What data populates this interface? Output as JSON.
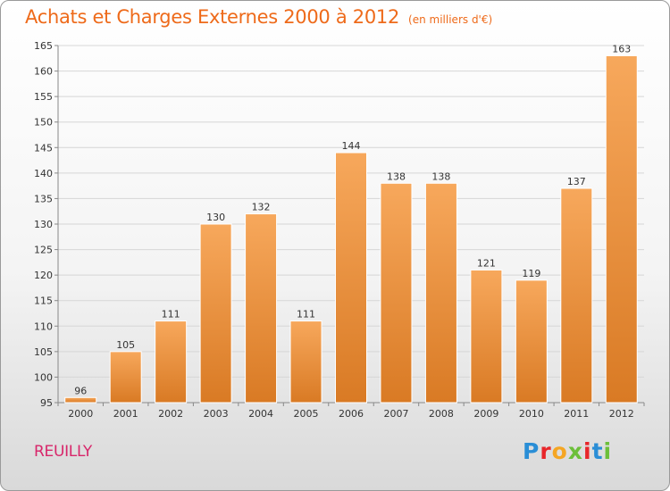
{
  "header": {
    "title": "Achats et Charges Externes 2000 à 2012",
    "subtitle": "(en milliers d'€)"
  },
  "footer": {
    "place": "REUILLY",
    "logo": "Proxiti"
  },
  "colors": {
    "title": "#ee6a1a",
    "place": "#d8266a",
    "bar_light": "#f7a85c",
    "bar_dark": "#d97a24",
    "logo_letters": [
      "#2a8ed6",
      "#e8262a",
      "#f5a623",
      "#6cbf3a",
      "#e8262a",
      "#2a8ed6",
      "#6cbf3a"
    ]
  },
  "chart_data": {
    "type": "bar",
    "title": "Achats et Charges Externes 2000 à 2012",
    "subtitle": "(en milliers d'€)",
    "categories": [
      "2000",
      "2001",
      "2002",
      "2003",
      "2004",
      "2005",
      "2006",
      "2007",
      "2008",
      "2009",
      "2010",
      "2011",
      "2012"
    ],
    "values": [
      96,
      105,
      111,
      130,
      132,
      111,
      144,
      138,
      138,
      121,
      119,
      137,
      163
    ],
    "ylim": [
      95,
      165
    ],
    "yticks": [
      95,
      100,
      105,
      110,
      115,
      120,
      125,
      130,
      135,
      140,
      145,
      150,
      155,
      160,
      165
    ],
    "grid": true,
    "data_labels": true
  }
}
